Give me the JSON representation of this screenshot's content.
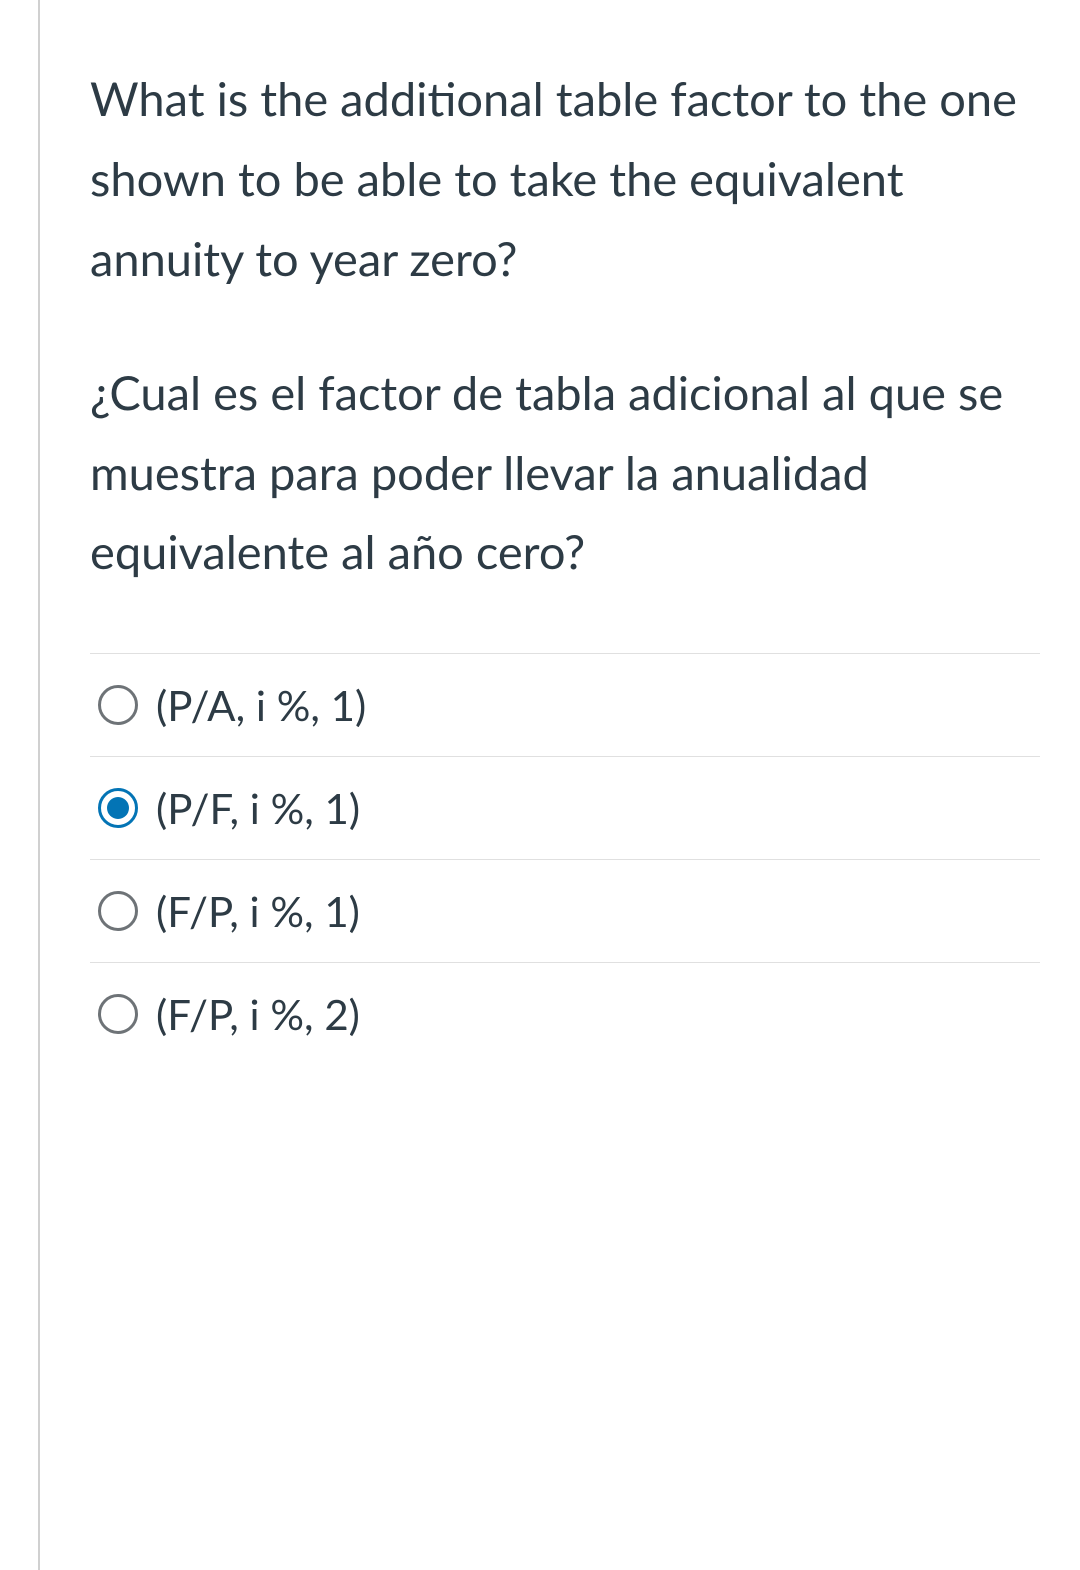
{
  "question": {
    "text_en": "What is the additional table factor to the one shown to be able to take the equivalent annuity to year zero?",
    "text_es": "¿Cual es el factor de tabla adicional al que se muestra para poder llevar la anualidad equivalente al año cero?"
  },
  "options": [
    {
      "label": "(P/A, i %, 1)",
      "selected": false
    },
    {
      "label": "(P/F, i %, 1)",
      "selected": true
    },
    {
      "label": "(F/P, i %, 1)",
      "selected": false
    },
    {
      "label": "(F/P, i %, 2)",
      "selected": false
    }
  ],
  "colors": {
    "text": "#2d3b45",
    "border": "#e0e0e0",
    "left_border": "#d0d0d0",
    "radio_unselected": "#6e7377",
    "radio_selected": "#0374b5",
    "background": "#ffffff"
  },
  "typography": {
    "question_fontsize": 47,
    "option_fontsize": 42,
    "line_height": 1.7
  }
}
